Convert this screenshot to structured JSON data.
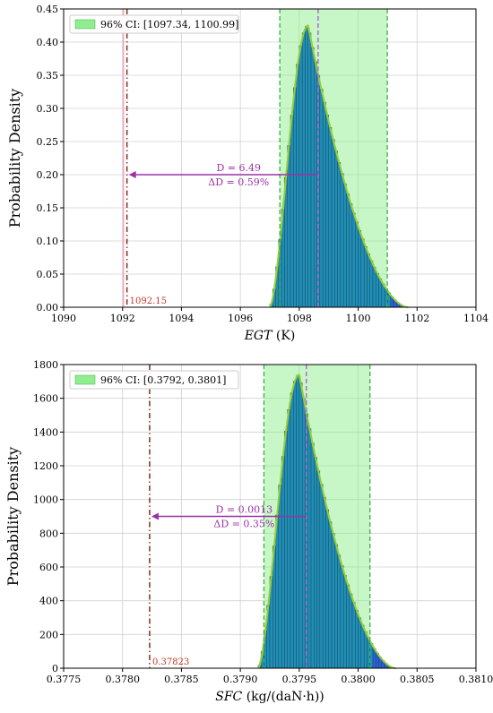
{
  "colors": {
    "bar": "#1f8fb8",
    "bar_tail": "#2b5fd9",
    "bar_edge": "#1a3a4a",
    "kde": "#9acd32",
    "ci_fill": "#90ee90",
    "ci_line": "#3cb043",
    "mean_line": "#b06ad6",
    "ref_line": "#8b3a2a",
    "ref_pink": "#f4a0c0",
    "annotation": "#9b30a6",
    "ref_label": "#c0392b"
  },
  "chart_data": [
    {
      "type": "bar",
      "xlabel_var": "EGT",
      "xlabel_unit": " (K)",
      "ylabel": "Probability Density",
      "xlim": [
        1090,
        1104
      ],
      "ylim": [
        0,
        0.45
      ],
      "xticks": [
        1090,
        1092,
        1094,
        1096,
        1098,
        1100,
        1102,
        1104
      ],
      "yticks": [
        0.0,
        0.05,
        0.1,
        0.15,
        0.2,
        0.25,
        0.3,
        0.35,
        0.4,
        0.45
      ],
      "xtick_labels": [
        "1090",
        "1092",
        "1094",
        "1096",
        "1098",
        "1100",
        "1102",
        "1104"
      ],
      "ytick_labels": [
        "0.00",
        "0.05",
        "0.10",
        "0.15",
        "0.20",
        "0.25",
        "0.30",
        "0.35",
        "0.40",
        "0.45"
      ],
      "grid": true,
      "legend_label": "96% CI: [1097.34, 1100.99]",
      "legend_position": "top-left",
      "ci": [
        1097.34,
        1100.99
      ],
      "mean": 1098.64,
      "reference": 1092.15,
      "reference_label": "1092.15",
      "distribution": {
        "lo": 1097.0,
        "mode": 1098.3,
        "hi": 1101.7,
        "peak": 0.425
      },
      "bin_width": 0.1,
      "arrow_y": 0.2,
      "annotation_D": "D = 6.49",
      "annotation_dD": "ΔD = 0.59%"
    },
    {
      "type": "bar",
      "xlabel_var": "SFC",
      "xlabel_unit": " (kg/(daN·h))",
      "ylabel": "Probability Density",
      "xlim": [
        0.3775,
        0.381
      ],
      "ylim": [
        0,
        1800
      ],
      "xticks": [
        0.3775,
        0.378,
        0.3785,
        0.379,
        0.3795,
        0.38,
        0.3805,
        0.381
      ],
      "yticks": [
        0,
        200,
        400,
        600,
        800,
        1000,
        1200,
        1400,
        1600,
        1800
      ],
      "xtick_labels": [
        "0.3775",
        "0.3780",
        "0.3785",
        "0.3790",
        "0.3795",
        "0.3800",
        "0.3805",
        "0.3810"
      ],
      "ytick_labels": [
        "0",
        "200",
        "400",
        "600",
        "800",
        "1000",
        "1200",
        "1400",
        "1600",
        "1800"
      ],
      "grid": true,
      "legend_label": "96% CI: [0.3792, 0.3801]",
      "legend_position": "top-left",
      "ci": [
        0.3792,
        0.3801
      ],
      "mean": 0.37956,
      "reference": 0.37823,
      "reference_label": "0.37823",
      "distribution": {
        "lo": 0.37915,
        "mode": 0.3795,
        "hi": 0.38032,
        "peak": 1740
      },
      "bin_width": 2.5e-05,
      "arrow_y": 900,
      "annotation_D": "D = 0.0013",
      "annotation_dD": "ΔD = 0.35%"
    }
  ]
}
